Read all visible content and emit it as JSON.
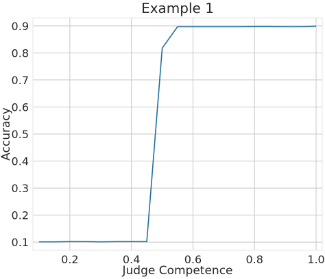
{
  "chart_data": {
    "type": "line",
    "title": "Example 1",
    "xlabel": "Judge Competence",
    "ylabel": "Accuracy",
    "xlim": [
      0.08,
      1.02
    ],
    "ylim": [
      0.07,
      0.93
    ],
    "xticks": [
      0.2,
      0.4,
      0.6,
      0.8,
      1.0
    ],
    "xtick_labels": [
      "0.2",
      "0.4",
      "0.6",
      "0.8",
      "1.0"
    ],
    "yticks": [
      0.1,
      0.2,
      0.3,
      0.4,
      0.5,
      0.6,
      0.7,
      0.8,
      0.9
    ],
    "ytick_labels": [
      "0.1",
      "0.2",
      "0.3",
      "0.4",
      "0.5",
      "0.6",
      "0.7",
      "0.8",
      "0.9"
    ],
    "grid": true,
    "series": [
      {
        "color": "#1f6f9f",
        "x": [
          0.1,
          0.15,
          0.2,
          0.25,
          0.3,
          0.35,
          0.4,
          0.45,
          0.5,
          0.55,
          0.6,
          0.65,
          0.7,
          0.75,
          0.8,
          0.85,
          0.9,
          0.95,
          1.0
        ],
        "y": [
          0.101,
          0.101,
          0.102,
          0.102,
          0.101,
          0.102,
          0.102,
          0.102,
          0.818,
          0.897,
          0.897,
          0.897,
          0.897,
          0.897,
          0.898,
          0.898,
          0.897,
          0.897,
          0.899
        ]
      }
    ]
  }
}
